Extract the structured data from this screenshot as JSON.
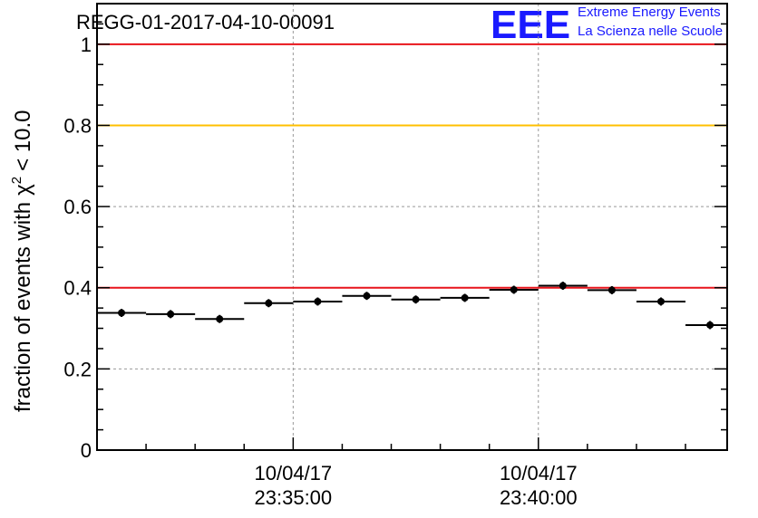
{
  "chart_data": {
    "type": "scatter",
    "title": "REGG-01-2017-04-10-00091",
    "ylabel": "fraction of events with",
    "ylabel_symbol": "χ",
    "ylabel_exponent": "2",
    "ylabel_threshold": "< 10.0",
    "ylim": [
      0,
      1.1
    ],
    "yticks": [
      0,
      0.2,
      0.4,
      0.6,
      0.8,
      1
    ],
    "ytick_labels": [
      "0",
      "0.2",
      "0.4",
      "0.6",
      "0.8",
      "1"
    ],
    "xlim_minutes": [
      0,
      12.85
    ],
    "xticks": [
      {
        "minute": 4.0,
        "date": "10/04/17",
        "time": "23:35:00"
      },
      {
        "minute": 9.0,
        "date": "10/04/17",
        "time": "23:40:00"
      }
    ],
    "grid": true,
    "reference_lines": [
      {
        "y": 1.0,
        "color": "#e8141b"
      },
      {
        "y": 0.8,
        "color": "#ffc000"
      },
      {
        "y": 0.4,
        "color": "#e8141b"
      }
    ],
    "points": [
      {
        "x_start": 0.0,
        "x_end": 1.0,
        "y": 0.338,
        "err": 0.01
      },
      {
        "x_start": 1.0,
        "x_end": 2.0,
        "y": 0.335,
        "err": 0.01
      },
      {
        "x_start": 2.0,
        "x_end": 3.0,
        "y": 0.323,
        "err": 0.01
      },
      {
        "x_start": 3.0,
        "x_end": 4.0,
        "y": 0.362,
        "err": 0.01
      },
      {
        "x_start": 4.0,
        "x_end": 5.0,
        "y": 0.366,
        "err": 0.01
      },
      {
        "x_start": 5.0,
        "x_end": 6.0,
        "y": 0.38,
        "err": 0.01
      },
      {
        "x_start": 6.0,
        "x_end": 7.0,
        "y": 0.371,
        "err": 0.01
      },
      {
        "x_start": 7.0,
        "x_end": 8.0,
        "y": 0.375,
        "err": 0.01
      },
      {
        "x_start": 8.0,
        "x_end": 9.0,
        "y": 0.395,
        "err": 0.01
      },
      {
        "x_start": 9.0,
        "x_end": 10.0,
        "y": 0.405,
        "err": 0.01
      },
      {
        "x_start": 10.0,
        "x_end": 11.0,
        "y": 0.394,
        "err": 0.01
      },
      {
        "x_start": 11.0,
        "x_end": 12.0,
        "y": 0.366,
        "err": 0.01
      },
      {
        "x_start": 12.0,
        "x_end": 13.0,
        "y": 0.308,
        "err": 0.01
      }
    ],
    "colors": {
      "marker": "#000000",
      "grid": "#999999",
      "axis": "#000000"
    }
  },
  "logo": {
    "mark": "EEE",
    "line1": "Extreme Energy Events",
    "line2": "La Scienza nelle Scuole",
    "color": "#1a1aff"
  }
}
